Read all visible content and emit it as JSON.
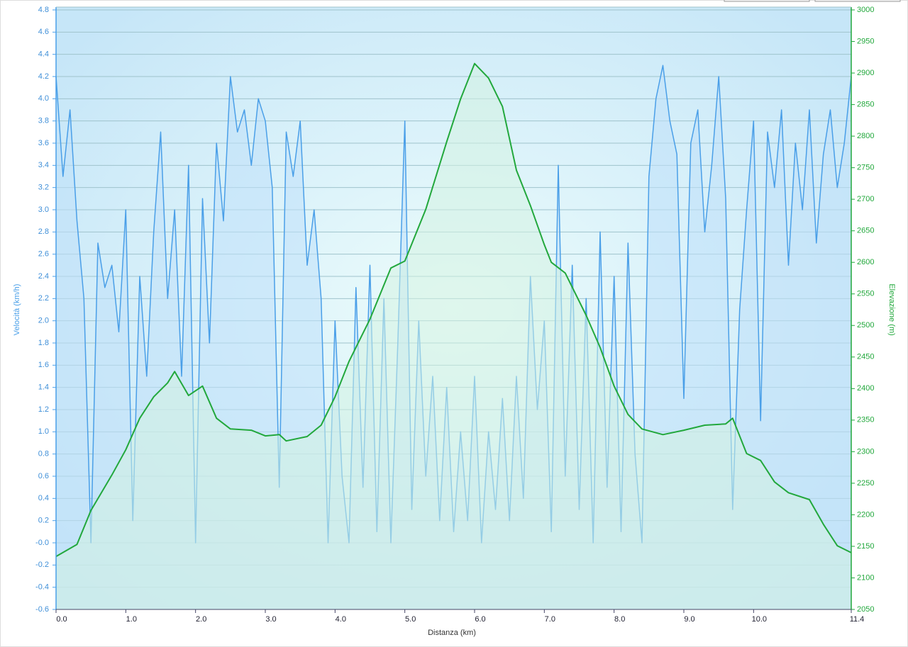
{
  "chart_data": {
    "type": "line",
    "xlabel": "Distanza  (km)",
    "ylabel": "Velocità (km/h)",
    "y2label": "Elevazione (m)",
    "grid": true,
    "xlim": [
      0,
      11.4
    ],
    "xticks": [
      {
        "value": 0,
        "label": "0.0"
      },
      {
        "value": 1,
        "label": "1.0"
      },
      {
        "value": 2,
        "label": "2.0"
      },
      {
        "value": 3,
        "label": "3.0"
      },
      {
        "value": 4,
        "label": "4.0"
      },
      {
        "value": 5,
        "label": "5.0"
      },
      {
        "value": 6,
        "label": "6.0"
      },
      {
        "value": 7,
        "label": "7.0"
      },
      {
        "value": 8,
        "label": "8.0"
      },
      {
        "value": 9,
        "label": "9.0"
      },
      {
        "value": 10,
        "label": "10.0"
      },
      11.4
    ],
    "ylim": [
      -0.6,
      4.8
    ],
    "yticks": [
      -0.6,
      -0.4,
      -0.2,
      {
        "value": 0,
        "label": "-0.0"
      },
      0.2,
      0.4,
      0.6,
      0.8,
      {
        "value": 1,
        "label": "1.0"
      },
      1.2,
      1.4,
      1.6,
      1.8,
      {
        "value": 2,
        "label": "2.0"
      },
      2.2,
      2.4,
      2.6,
      2.8,
      {
        "value": 3,
        "label": "3.0"
      },
      3.2,
      3.4,
      3.6,
      3.8,
      {
        "value": 4,
        "label": "4.0"
      },
      4.2,
      4.4,
      4.6,
      4.8
    ],
    "y2lim": [
      2050,
      3000
    ],
    "y2ticks": [
      2050,
      2100,
      2150,
      2200,
      2250,
      2300,
      2350,
      2400,
      2450,
      2500,
      2550,
      2600,
      2650,
      2700,
      2750,
      2800,
      2850,
      2900,
      2950,
      3000
    ],
    "series": [
      {
        "color": "#4a9fe8",
        "fill": "#bfe0fa",
        "x": [
          0.0,
          0.1,
          0.2,
          0.3,
          0.4,
          0.5,
          0.6,
          0.7,
          0.8,
          0.9,
          1.0,
          1.1,
          1.2,
          1.3,
          1.4,
          1.5,
          1.6,
          1.7,
          1.8,
          1.9,
          2.0,
          2.1,
          2.2,
          2.3,
          2.4,
          2.5,
          2.6,
          2.7,
          2.8,
          2.9,
          3.0,
          3.1,
          3.2,
          3.3,
          3.4,
          3.5,
          3.6,
          3.7,
          3.8,
          3.9,
          4.0,
          4.1,
          4.2,
          4.3,
          4.4,
          4.5,
          4.6,
          4.7,
          4.8,
          4.9,
          5.0,
          5.1,
          5.2,
          5.3,
          5.4,
          5.5,
          5.6,
          5.7,
          5.8,
          5.9,
          6.0,
          6.1,
          6.2,
          6.3,
          6.4,
          6.5,
          6.6,
          6.7,
          6.8,
          6.9,
          7.0,
          7.1,
          7.2,
          7.3,
          7.4,
          7.5,
          7.6,
          7.7,
          7.8,
          7.9,
          8.0,
          8.1,
          8.2,
          8.3,
          8.4,
          8.5,
          8.6,
          8.7,
          8.8,
          8.9,
          9.0,
          9.1,
          9.2,
          9.3,
          9.4,
          9.5,
          9.6,
          9.7,
          9.8,
          9.9,
          10.0,
          10.1,
          10.2,
          10.3,
          10.4,
          10.5,
          10.6,
          10.7,
          10.8,
          10.9,
          11.0,
          11.1,
          11.2,
          11.3,
          11.4
        ],
        "values": [
          4.2,
          3.3,
          3.9,
          2.9,
          2.2,
          0.0,
          2.7,
          2.3,
          2.5,
          1.9,
          3.0,
          0.2,
          2.4,
          1.5,
          2.8,
          3.7,
          2.2,
          3.0,
          1.5,
          3.4,
          0.0,
          3.1,
          1.8,
          3.6,
          2.9,
          4.2,
          3.7,
          3.9,
          3.4,
          4.0,
          3.8,
          3.2,
          0.5,
          3.7,
          3.3,
          3.8,
          2.5,
          3.0,
          2.2,
          0.0,
          2.0,
          0.6,
          0.0,
          2.3,
          0.5,
          2.5,
          0.1,
          2.2,
          0.0,
          1.8,
          3.8,
          0.3,
          2.0,
          0.6,
          1.5,
          0.2,
          1.4,
          0.1,
          1.0,
          0.2,
          1.5,
          0.0,
          1.0,
          0.3,
          1.3,
          0.2,
          1.5,
          0.4,
          2.4,
          1.2,
          2.0,
          0.1,
          3.4,
          0.6,
          2.5,
          0.3,
          2.2,
          0.0,
          2.8,
          0.5,
          2.4,
          0.1,
          2.7,
          0.8,
          0.0,
          3.3,
          4.0,
          4.3,
          3.8,
          3.5,
          1.3,
          3.6,
          3.9,
          2.8,
          3.4,
          4.2,
          3.1,
          0.3,
          2.1,
          3.0,
          3.8,
          1.1,
          3.7,
          3.2,
          3.9,
          2.5,
          3.6,
          3.0,
          3.9,
          2.7,
          3.5,
          3.9,
          3.2,
          3.6,
          4.2
        ]
      },
      {
        "color": "#22a83c",
        "fill": "#d4f2e2",
        "axis": "y2",
        "x": [
          0,
          0.3,
          0.5,
          0.8,
          1.0,
          1.2,
          1.4,
          1.6,
          1.7,
          1.9,
          2.1,
          2.3,
          2.5,
          2.8,
          3.0,
          3.2,
          3.3,
          3.6,
          3.8,
          4.0,
          4.2,
          4.5,
          4.8,
          5.0,
          5.3,
          5.6,
          5.8,
          6.0,
          6.2,
          6.4,
          6.6,
          6.8,
          7.0,
          7.1,
          7.3,
          7.6,
          7.8,
          8.0,
          8.2,
          8.4,
          8.7,
          9.0,
          9.3,
          9.6,
          9.7,
          9.9,
          10.1,
          10.3,
          10.5,
          10.8,
          11.0,
          11.2,
          11.4
        ],
        "values": [
          2134,
          2153,
          2207,
          2263,
          2303,
          2353,
          2387,
          2409,
          2427,
          2389,
          2404,
          2353,
          2336,
          2334,
          2325,
          2327,
          2317,
          2324,
          2342,
          2387,
          2443,
          2510,
          2591,
          2602,
          2684,
          2791,
          2859,
          2915,
          2892,
          2847,
          2746,
          2690,
          2628,
          2600,
          2583,
          2516,
          2465,
          2404,
          2359,
          2336,
          2327,
          2334,
          2342,
          2344,
          2353,
          2297,
          2286,
          2252,
          2235,
          2224,
          2185,
          2151,
          2140
        ]
      }
    ]
  }
}
